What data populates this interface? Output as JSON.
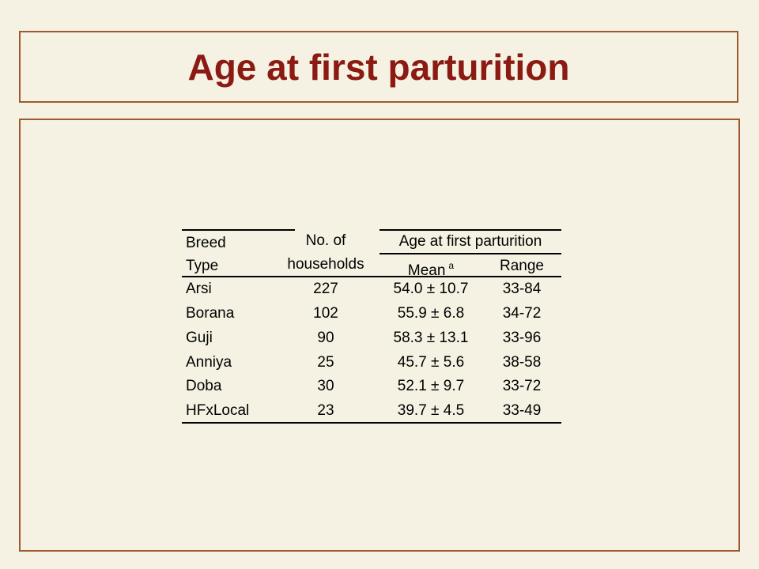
{
  "slide": {
    "title": "Age at first parturition"
  },
  "table": {
    "header": {
      "breed_line1": "Breed",
      "breed_line2": "Type",
      "households_line1": "No. of",
      "households_line2": "households",
      "group": "Age at first parturition",
      "mean": "Mean",
      "mean_sup": "a",
      "range": "Range"
    },
    "rows": [
      {
        "breed": "Arsi",
        "households": "227",
        "mean": "54.0 ± 10.7",
        "range": "33-84"
      },
      {
        "breed": "Borana",
        "households": "102",
        "mean": "55.9 ± 6.8",
        "range": "34-72"
      },
      {
        "breed": "Guji",
        "households": "90",
        "mean": "58.3 ± 13.1",
        "range": "33-96"
      },
      {
        "breed": "Anniya",
        "households": "25",
        "mean": "45.7 ± 5.6",
        "range": "38-58"
      },
      {
        "breed": "Doba",
        "households": "30",
        "mean": "52.1 ± 9.7",
        "range": "33-72"
      },
      {
        "breed": "HFxLocal",
        "households": "23",
        "mean": "39.7 ± 4.5",
        "range": "33-49"
      }
    ]
  }
}
